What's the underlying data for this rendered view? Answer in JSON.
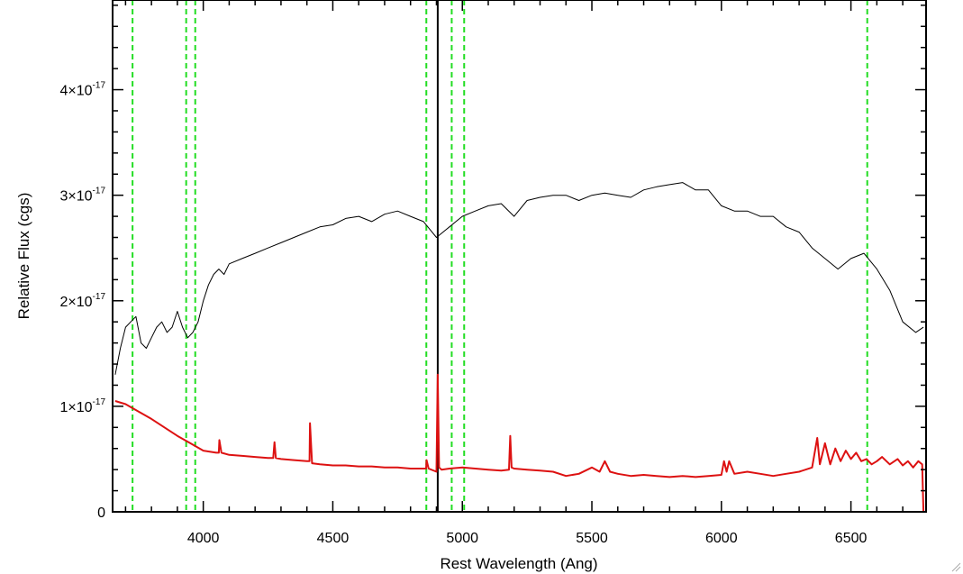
{
  "chart_data": {
    "type": "line",
    "title": "",
    "xlabel": "Rest Wavelength (Ang)",
    "ylabel": "Relative Flux (cgs)",
    "xlim": [
      3650,
      6790
    ],
    "ylim": [
      0,
      4.85e-17
    ],
    "x_ticks": [
      {
        "value": 4000,
        "label": "4000"
      },
      {
        "value": 4500,
        "label": "4500"
      },
      {
        "value": 5000,
        "label": "5000"
      },
      {
        "value": 5500,
        "label": "5500"
      },
      {
        "value": 6000,
        "label": "6000"
      },
      {
        "value": 6500,
        "label": "6500"
      }
    ],
    "y_ticks": [
      {
        "value": 0,
        "mantissa": "0",
        "exponent": ""
      },
      {
        "value": 1e-17,
        "mantissa": "1×10",
        "exponent": "-17"
      },
      {
        "value": 2e-17,
        "mantissa": "2×10",
        "exponent": "-17"
      },
      {
        "value": 3e-17,
        "mantissa": "3×10",
        "exponent": "-17"
      },
      {
        "value": 4e-17,
        "mantissa": "4×10",
        "exponent": "-17"
      }
    ],
    "grid": false,
    "legend": "none",
    "colors": {
      "observed": "#000000",
      "model": "#dd1111",
      "marker": "#22dd22",
      "line": "#000000"
    },
    "vertical_markers": [
      {
        "x": 3727,
        "style": "dashed",
        "color": "#22dd22"
      },
      {
        "x": 3934,
        "style": "dashed",
        "color": "#22dd22"
      },
      {
        "x": 3969,
        "style": "dashed",
        "color": "#22dd22"
      },
      {
        "x": 4861,
        "style": "dashed",
        "color": "#22dd22"
      },
      {
        "x": 4959,
        "style": "dashed",
        "color": "#22dd22"
      },
      {
        "x": 5007,
        "style": "dashed",
        "color": "#22dd22"
      },
      {
        "x": 6563,
        "style": "dashed",
        "color": "#22dd22"
      },
      {
        "x": 4905,
        "style": "solid",
        "color": "#000000"
      }
    ],
    "series": [
      {
        "x": [
          3660,
          3680,
          3700,
          3720,
          3740,
          3760,
          3780,
          3800,
          3820,
          3840,
          3860,
          3880,
          3900,
          3920,
          3940,
          3960,
          3980,
          4000,
          4020,
          4040,
          4060,
          4080,
          4100,
          4150,
          4200,
          4250,
          4300,
          4350,
          4400,
          4450,
          4500,
          4550,
          4600,
          4650,
          4700,
          4750,
          4800,
          4850,
          4900,
          4950,
          5000,
          5050,
          5100,
          5150,
          5200,
          5250,
          5300,
          5350,
          5400,
          5450,
          5500,
          5550,
          5600,
          5650,
          5700,
          5750,
          5800,
          5850,
          5900,
          5950,
          6000,
          6050,
          6100,
          6150,
          6200,
          6250,
          6300,
          6350,
          6400,
          6450,
          6500,
          6550,
          6600,
          6650,
          6700,
          6750,
          6780
        ],
        "values": [
          1.3e-17,
          1.55e-17,
          1.75e-17,
          1.8e-17,
          1.85e-17,
          1.6e-17,
          1.55e-17,
          1.65e-17,
          1.75e-17,
          1.8e-17,
          1.7e-17,
          1.75e-17,
          1.9e-17,
          1.75e-17,
          1.65e-17,
          1.7e-17,
          1.8e-17,
          2e-17,
          2.15e-17,
          2.25e-17,
          2.3e-17,
          2.25e-17,
          2.35e-17,
          2.4e-17,
          2.45e-17,
          2.5e-17,
          2.55e-17,
          2.6e-17,
          2.65e-17,
          2.7e-17,
          2.72e-17,
          2.78e-17,
          2.8e-17,
          2.75e-17,
          2.82e-17,
          2.85e-17,
          2.8e-17,
          2.75e-17,
          2.6e-17,
          2.7e-17,
          2.8e-17,
          2.85e-17,
          2.9e-17,
          2.92e-17,
          2.8e-17,
          2.95e-17,
          2.98e-17,
          3e-17,
          3e-17,
          2.95e-17,
          3e-17,
          3.02e-17,
          3e-17,
          2.98e-17,
          3.05e-17,
          3.08e-17,
          3.1e-17,
          3.12e-17,
          3.05e-17,
          3.05e-17,
          2.9e-17,
          2.85e-17,
          2.85e-17,
          2.8e-17,
          2.8e-17,
          2.7e-17,
          2.65e-17,
          2.5e-17,
          2.4e-17,
          2.3e-17,
          2.4e-17,
          2.45e-17,
          2.3e-17,
          2.1e-17,
          1.8e-17,
          1.7e-17,
          1.75e-17
        ]
      },
      {
        "x": [
          3660,
          3700,
          3750,
          3800,
          3850,
          3900,
          3950,
          4000,
          4050,
          4060,
          4062,
          4070,
          4100,
          4150,
          4200,
          4250,
          4270,
          4275,
          4280,
          4300,
          4350,
          4400,
          4410,
          4412,
          4420,
          4450,
          4500,
          4550,
          4600,
          4650,
          4700,
          4750,
          4800,
          4850,
          4860,
          4862,
          4870,
          4900,
          4905,
          4910,
          4920,
          4950,
          5000,
          5050,
          5100,
          5150,
          5180,
          5185,
          5190,
          5200,
          5250,
          5300,
          5350,
          5400,
          5450,
          5500,
          5530,
          5550,
          5570,
          5600,
          5650,
          5700,
          5750,
          5800,
          5850,
          5900,
          5950,
          6000,
          6010,
          6020,
          6030,
          6050,
          6100,
          6150,
          6200,
          6250,
          6300,
          6350,
          6370,
          6380,
          6400,
          6420,
          6440,
          6460,
          6480,
          6500,
          6520,
          6540,
          6560,
          6580,
          6600,
          6620,
          6650,
          6680,
          6700,
          6720,
          6740,
          6760,
          6770,
          6775,
          6780
        ],
        "values": [
          1.05e-17,
          1.02e-17,
          9.5e-18,
          8.8e-18,
          8e-18,
          7.2e-18,
          6.5e-18,
          5.8e-18,
          5.6e-18,
          5.6e-18,
          6.8e-18,
          5.6e-18,
          5.4e-18,
          5.3e-18,
          5.2e-18,
          5.1e-18,
          5.1e-18,
          6.6e-18,
          5.1e-18,
          5e-18,
          4.9e-18,
          4.8e-18,
          4.8e-18,
          8.4e-18,
          4.6e-18,
          4.5e-18,
          4.4e-18,
          4.4e-18,
          4.3e-18,
          4.3e-18,
          4.2e-18,
          4.2e-18,
          4.1e-18,
          4.1e-18,
          4.1e-18,
          4.9e-18,
          4.1e-18,
          3.8e-18,
          1.3e-17,
          4.2e-18,
          4e-18,
          4.1e-18,
          4.2e-18,
          4.1e-18,
          4e-18,
          3.9e-18,
          4e-18,
          7.2e-18,
          4.2e-18,
          4.1e-18,
          4e-18,
          3.9e-18,
          3.8e-18,
          3.4e-18,
          3.6e-18,
          4.2e-18,
          3.8e-18,
          4.8e-18,
          3.8e-18,
          3.6e-18,
          3.4e-18,
          3.5e-18,
          3.4e-18,
          3.3e-18,
          3.4e-18,
          3.3e-18,
          3.4e-18,
          3.5e-18,
          4.8e-18,
          3.8e-18,
          4.8e-18,
          3.6e-18,
          3.8e-18,
          3.6e-18,
          3.4e-18,
          3.6e-18,
          3.8e-18,
          4.2e-18,
          7e-18,
          4.5e-18,
          6.5e-18,
          4.5e-18,
          6e-18,
          4.8e-18,
          5.8e-18,
          5e-18,
          5.6e-18,
          4.8e-18,
          5e-18,
          4.5e-18,
          4.8e-18,
          5.2e-18,
          4.5e-18,
          5e-18,
          4.4e-18,
          4.8e-18,
          4.2e-18,
          4.8e-18,
          4.6e-18,
          4.5e-18,
          0.0
        ]
      }
    ]
  }
}
